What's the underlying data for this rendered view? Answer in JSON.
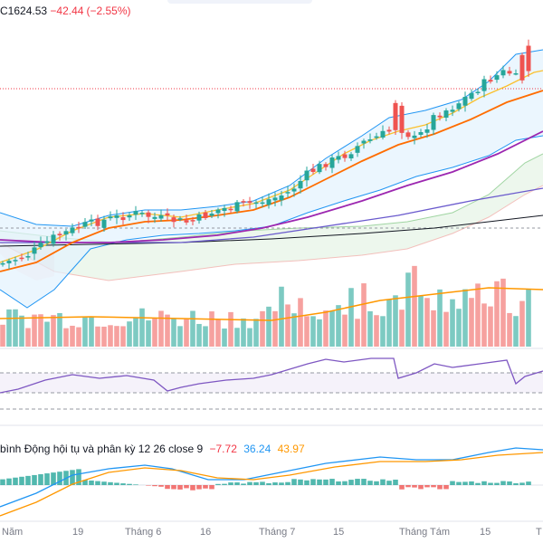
{
  "header": {
    "label_c": "C",
    "close": "1624.53",
    "change": "−42.44",
    "change_pct": "(−2.55%)"
  },
  "macd_legend": {
    "title": "bình Động hội tụ và phân kỳ 12 26 close 9",
    "value_1": "−7.72",
    "value_2": "36.24",
    "value_3": "43.97"
  },
  "colors": {
    "up": "#26a69a",
    "down": "#ef5350",
    "bb_line": "#2196f3",
    "bb_fill": "#e3f2fd",
    "ma_fast": "#fbc02d",
    "ma_mid": "#ff6d00",
    "ma_slow": "#9c27b0",
    "ma_200": "#6a5acd",
    "ma_long": "#131722",
    "rsi": "#7e57c2",
    "macd": "#2196f3",
    "signal": "#ff9800"
  },
  "chart_data": {
    "type": "candlestick",
    "x_tick_labels": [
      "Năm",
      "19",
      "Tháng 6",
      "16",
      "Tháng 7",
      "15",
      "Tháng Tám",
      "15",
      "T"
    ],
    "panes": [
      "price",
      "volume",
      "rsi",
      "macd"
    ]
  }
}
